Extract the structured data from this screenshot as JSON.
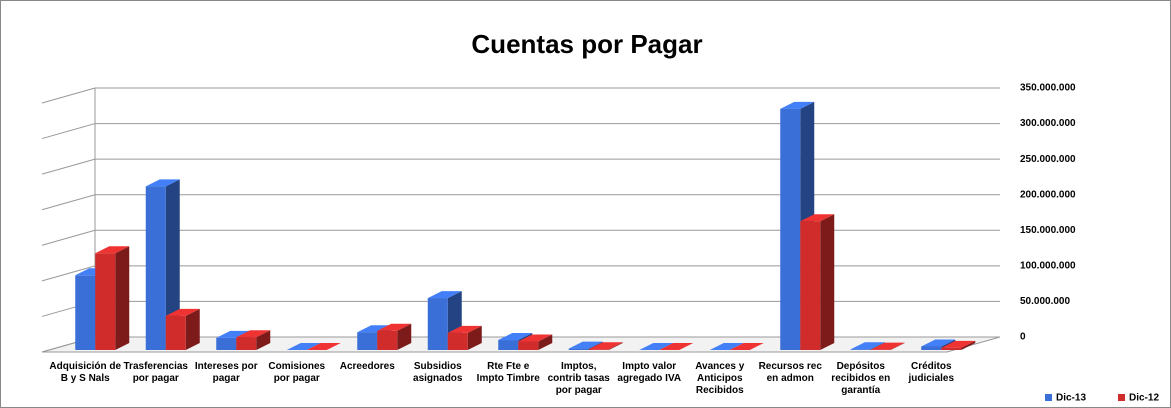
{
  "chart_data": {
    "type": "bar3d",
    "title": "Cuentas por Pagar",
    "categories": [
      "Adquisición de B y S Nals",
      "Trasferencias por pagar",
      "Intereses por pagar",
      "Comisiones por pagar",
      "Acreedores",
      "Subsidios asignados",
      "Rte Fte e Impto Timbre",
      "Imptos, contrib tasas por pagar",
      "Impto valor agregado IVA",
      "Avances y Anticipos Recibidos",
      "Recursos rec en admon",
      "Depósitos recibidos en garantía",
      "Créditos judiciales"
    ],
    "series": [
      {
        "name": "Dic-13",
        "color": "#3a6fd8",
        "values": [
          105000000,
          230000000,
          17000000,
          0,
          25000000,
          73000000,
          14000000,
          2000000,
          0,
          0,
          339000000,
          1000000,
          5000000
        ]
      },
      {
        "name": "Dic-12",
        "color": "#d02c2c",
        "values": [
          136000000,
          48000000,
          18000000,
          0,
          27000000,
          24000000,
          12000000,
          1000000,
          0,
          0,
          181000000,
          500000,
          3000000
        ]
      }
    ],
    "ylim": [
      0,
      350000000
    ],
    "yticks": [
      0,
      {
        "value": 50000000,
        "label": "50.000.000"
      },
      {
        "value": 100000000,
        "label": "100.000.000"
      },
      {
        "value": 150000000,
        "label": "150.000.000"
      },
      {
        "value": 200000000,
        "label": "200.000.000"
      },
      {
        "value": 250000000,
        "label": "250.000.000"
      },
      {
        "value": 300000000,
        "label": "300.000.000"
      },
      {
        "value": 350000000,
        "label": "350.000.000"
      }
    ],
    "grid": true,
    "legend": "bottom-right"
  }
}
